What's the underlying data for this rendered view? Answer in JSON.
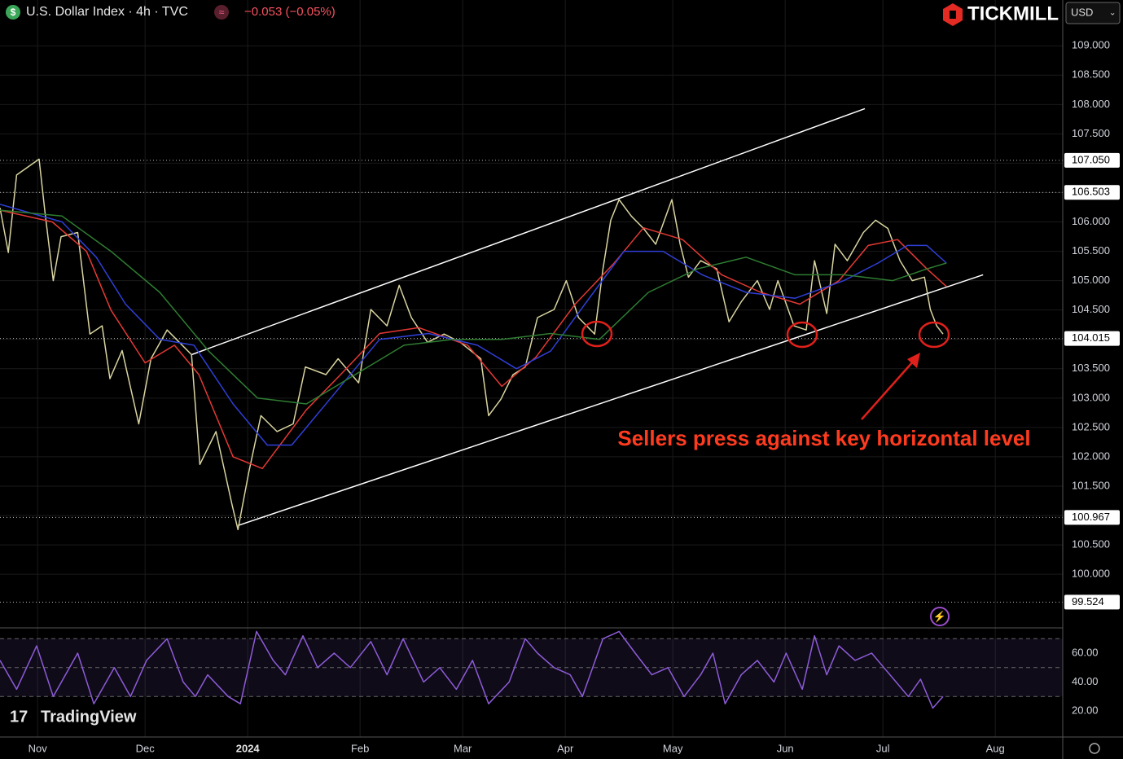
{
  "header": {
    "symbol": "U.S. Dollar Index · 4h · TVC",
    "change": "−0.053 (−0.05%)",
    "broker": "TICKMILL",
    "currency": "USD",
    "platform": "TradingView"
  },
  "chart_data": [
    {
      "type": "line",
      "annotation": "Sellers press against key horizontal level",
      "xlim": [
        -7.7,
        209.8
      ],
      "xticks": [
        {
          "value": 0,
          "label": "Nov"
        },
        {
          "value": 22,
          "label": "Dec"
        },
        {
          "value": 43,
          "label": "2024"
        },
        {
          "value": 66,
          "label": "Feb"
        },
        {
          "value": 87,
          "label": "Mar"
        },
        {
          "value": 108,
          "label": "Apr"
        },
        {
          "value": 130,
          "label": "May"
        },
        {
          "value": 153,
          "label": "Jun"
        },
        {
          "value": 173,
          "label": "Jul"
        },
        {
          "value": 196,
          "label": "Aug"
        }
      ],
      "ylim": [
        99.1,
        109.78
      ],
      "yticks": [
        {
          "value": 100,
          "label": "100.000"
        },
        {
          "value": 100.5,
          "label": "100.500"
        },
        {
          "value": 101,
          "label": "101.000"
        },
        {
          "value": 101.5,
          "label": "101.500"
        },
        {
          "value": 102,
          "label": "102.000"
        },
        {
          "value": 102.5,
          "label": "102.500"
        },
        {
          "value": 103,
          "label": "103.000"
        },
        {
          "value": 103.5,
          "label": "103.500"
        },
        {
          "value": 104,
          "label": "104.000"
        },
        {
          "value": 104.5,
          "label": "104.500"
        },
        {
          "value": 105,
          "label": "105.000"
        },
        {
          "value": 105.5,
          "label": "105.500"
        },
        {
          "value": 106,
          "label": "106.000"
        },
        {
          "value": 106.5,
          "label": "106.500"
        },
        {
          "value": 107,
          "label": "107.000"
        },
        {
          "value": 107.5,
          "label": "107.500"
        },
        {
          "value": 108,
          "label": "108.000"
        },
        {
          "value": 108.5,
          "label": "108.500"
        },
        {
          "value": 109,
          "label": "109.000"
        }
      ],
      "grid": true,
      "levels": [
        {
          "value": 107.05,
          "label": "107.050"
        },
        {
          "value": 106.503,
          "label": "106.503"
        },
        {
          "value": 104.015,
          "label": "104.015"
        },
        {
          "value": 100.967,
          "label": "100.967"
        },
        {
          "value": 99.524,
          "label": "99.524"
        }
      ],
      "trendlines": [
        {
          "color": "#ffffff",
          "x": [
            31.5,
            169.3
          ],
          "values": [
            103.74,
            107.93
          ]
        },
        {
          "color": "#ffffff",
          "x": [
            41,
            193.5
          ],
          "values": [
            100.83,
            105.1
          ]
        }
      ],
      "series": [
        {
          "color": "#d9d4a0",
          "x": [
            -7.7,
            -6,
            -4.3,
            0.3,
            1.5,
            3.2,
            4.8,
            8.2,
            10.7,
            13.2,
            14.8,
            17.3,
            20.7,
            23.2,
            26.5,
            29,
            31.5,
            33.2,
            36.5,
            39.8,
            41,
            43.2,
            45.7,
            49,
            52.3,
            54.8,
            59,
            61.5,
            65.7,
            68.2,
            71.5,
            74,
            76.5,
            79.8,
            83.2,
            86.5,
            90.7,
            92.3,
            94.8,
            97.3,
            99.8,
            102.3,
            105.7,
            108.2,
            110.7,
            114,
            115.7,
            117.3,
            119,
            121.5,
            124,
            126.5,
            129.8,
            131.5,
            133.2,
            135.7,
            139,
            141.5,
            144,
            147.3,
            149.8,
            151.5,
            154.8,
            157.3,
            159,
            161.5,
            163.2,
            165.7,
            169,
            171.5,
            174,
            176.5,
            179,
            181.5,
            182.7,
            184,
            185.3
          ],
          "values": [
            106.24,
            105.48,
            106.8,
            107.07,
            106.17,
            105.0,
            105.75,
            105.82,
            104.09,
            104.23,
            103.33,
            103.81,
            102.56,
            103.67,
            104.16,
            103.95,
            103.74,
            101.87,
            102.43,
            101.18,
            100.76,
            101.73,
            102.7,
            102.43,
            102.56,
            103.53,
            103.4,
            103.67,
            103.26,
            104.51,
            104.23,
            104.92,
            104.37,
            103.95,
            104.09,
            103.95,
            103.67,
            102.7,
            102.98,
            103.4,
            103.53,
            104.37,
            104.51,
            105.0,
            104.37,
            104.09,
            105.2,
            106.03,
            106.38,
            106.1,
            105.89,
            105.62,
            106.38,
            105.62,
            105.06,
            105.34,
            105.2,
            104.3,
            104.64,
            105.0,
            104.51,
            105.0,
            104.23,
            104.16,
            105.34,
            104.44,
            105.62,
            105.34,
            105.82,
            106.03,
            105.89,
            105.34,
            105.0,
            105.06,
            104.51,
            104.23,
            104.09
          ]
        },
        {
          "color": "#e53935",
          "x": [
            -7.7,
            3,
            10,
            15,
            22,
            28,
            33,
            40,
            46,
            55,
            62,
            70,
            78,
            88,
            95,
            102,
            110,
            118,
            124,
            132,
            140,
            148,
            156,
            164,
            170,
            176,
            182,
            186
          ],
          "values": [
            106.2,
            106.0,
            105.5,
            104.5,
            103.6,
            103.9,
            103.4,
            102.0,
            101.8,
            102.8,
            103.4,
            104.1,
            104.2,
            103.9,
            103.2,
            103.7,
            104.6,
            105.3,
            105.9,
            105.7,
            105.1,
            104.8,
            104.6,
            105.0,
            105.6,
            105.7,
            105.2,
            104.9
          ]
        },
        {
          "color": "#2f3fd6",
          "x": [
            -7.7,
            5,
            12,
            18,
            25,
            32,
            40,
            47,
            52,
            60,
            70,
            80,
            90,
            98,
            105,
            112,
            120,
            128,
            136,
            145,
            155,
            165,
            172,
            178,
            182,
            186
          ],
          "values": [
            106.3,
            106.0,
            105.4,
            104.6,
            104.0,
            103.9,
            102.9,
            102.2,
            102.2,
            103.0,
            104.0,
            104.1,
            103.9,
            103.5,
            103.8,
            104.6,
            105.5,
            105.5,
            105.1,
            104.8,
            104.7,
            105.0,
            105.3,
            105.6,
            105.6,
            105.3
          ]
        },
        {
          "color": "#2e7d32",
          "x": [
            -7.7,
            5,
            15,
            25,
            35,
            45,
            55,
            65,
            75,
            85,
            95,
            105,
            115,
            125,
            135,
            145,
            155,
            165,
            175,
            182,
            186
          ],
          "values": [
            106.2,
            106.1,
            105.5,
            104.8,
            103.8,
            103.0,
            102.9,
            103.4,
            103.9,
            104.0,
            104.0,
            104.1,
            104.0,
            104.8,
            105.2,
            105.4,
            105.1,
            105.1,
            105.0,
            105.2,
            105.3
          ]
        }
      ]
    },
    {
      "type": "line",
      "ylim": [
        2,
        76.9
      ],
      "yticks": [
        {
          "value": 20,
          "label": "20.00"
        },
        {
          "value": 40,
          "label": "40.00"
        },
        {
          "value": 60,
          "label": "60.00"
        }
      ],
      "levels": [
        70,
        50,
        30
      ],
      "series": [
        {
          "color": "#8e5cd9",
          "x": [
            -7.7,
            -4.3,
            -0.2,
            3.2,
            8.2,
            11.5,
            15.7,
            19,
            22.3,
            26.5,
            29.8,
            32.3,
            34.8,
            39,
            41.5,
            44.8,
            48.2,
            50.7,
            54.3,
            57.3,
            60.7,
            64,
            68.2,
            71.5,
            74.8,
            79,
            82.3,
            85.7,
            89,
            92.3,
            96.5,
            99.8,
            102.3,
            105.7,
            109,
            111.5,
            115.7,
            119,
            122.3,
            125.7,
            129,
            132.3,
            135.7,
            138.2,
            140.7,
            144,
            147.3,
            150.7,
            153.2,
            156.5,
            159,
            161.5,
            164,
            167.3,
            170.7,
            173.2,
            175.7,
            178.2,
            180.7,
            183.2,
            185.3
          ],
          "values": [
            55,
            35,
            65,
            30,
            60,
            25,
            50,
            30,
            55,
            70,
            40,
            30,
            45,
            30,
            25,
            75,
            55,
            45,
            72,
            50,
            60,
            50,
            68,
            45,
            70,
            40,
            50,
            35,
            55,
            25,
            40,
            70,
            60,
            50,
            45,
            30,
            70,
            75,
            60,
            45,
            50,
            30,
            45,
            60,
            25,
            45,
            55,
            40,
            60,
            35,
            72,
            45,
            65,
            55,
            60,
            50,
            40,
            30,
            42,
            22,
            30
          ]
        }
      ]
    }
  ]
}
